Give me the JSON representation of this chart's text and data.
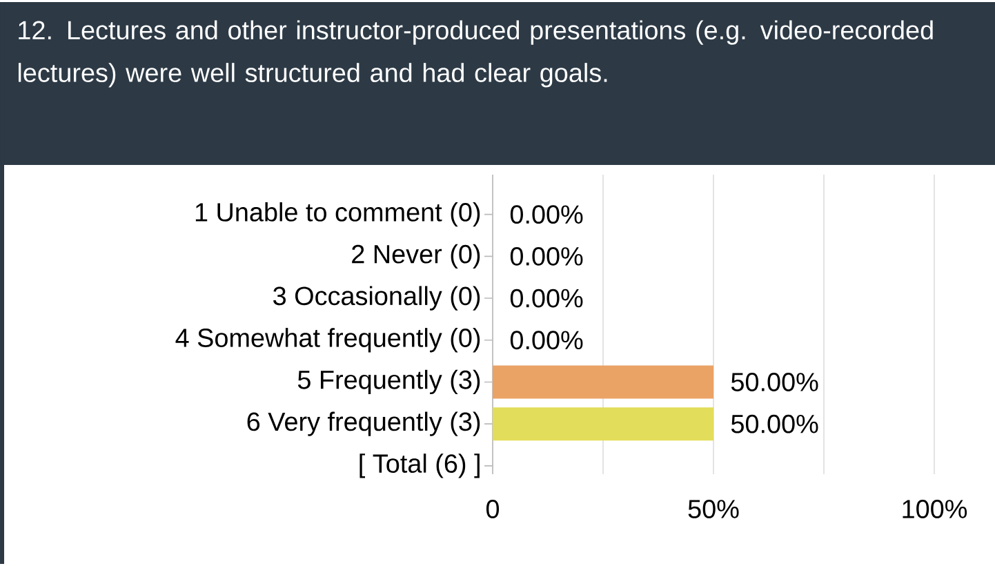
{
  "chart_data": {
    "type": "bar",
    "orientation": "horizontal",
    "title": "12. Lectures and other instructor-produced presentations (e.g. video-recorded lectures) were well structured and had clear goals.",
    "categories": [
      "1 Unable to comment (0)",
      "2 Never (0)",
      "3 Occasionally (0)",
      "4 Somewhat frequently (0)",
      "5 Frequently (3)",
      "6 Very frequently (3)",
      "[ Total (6) ]"
    ],
    "values": [
      0,
      0,
      0,
      0,
      50,
      50,
      null
    ],
    "colors": [
      null,
      null,
      null,
      null,
      "#eaa265",
      "#e2dd5a",
      null
    ],
    "value_labels": [
      "0.00%",
      "0.00%",
      "0.00%",
      "0.00%",
      "50.00%",
      "50.00%",
      null
    ],
    "xlim": [
      0,
      100
    ],
    "xticks": [
      0,
      {
        "value": 25,
        "label": null
      },
      {
        "value": 50,
        "label": "50%"
      },
      {
        "value": 75,
        "label": null
      },
      {
        "value": 100,
        "label": "100%"
      }
    ],
    "grid": "x"
  }
}
